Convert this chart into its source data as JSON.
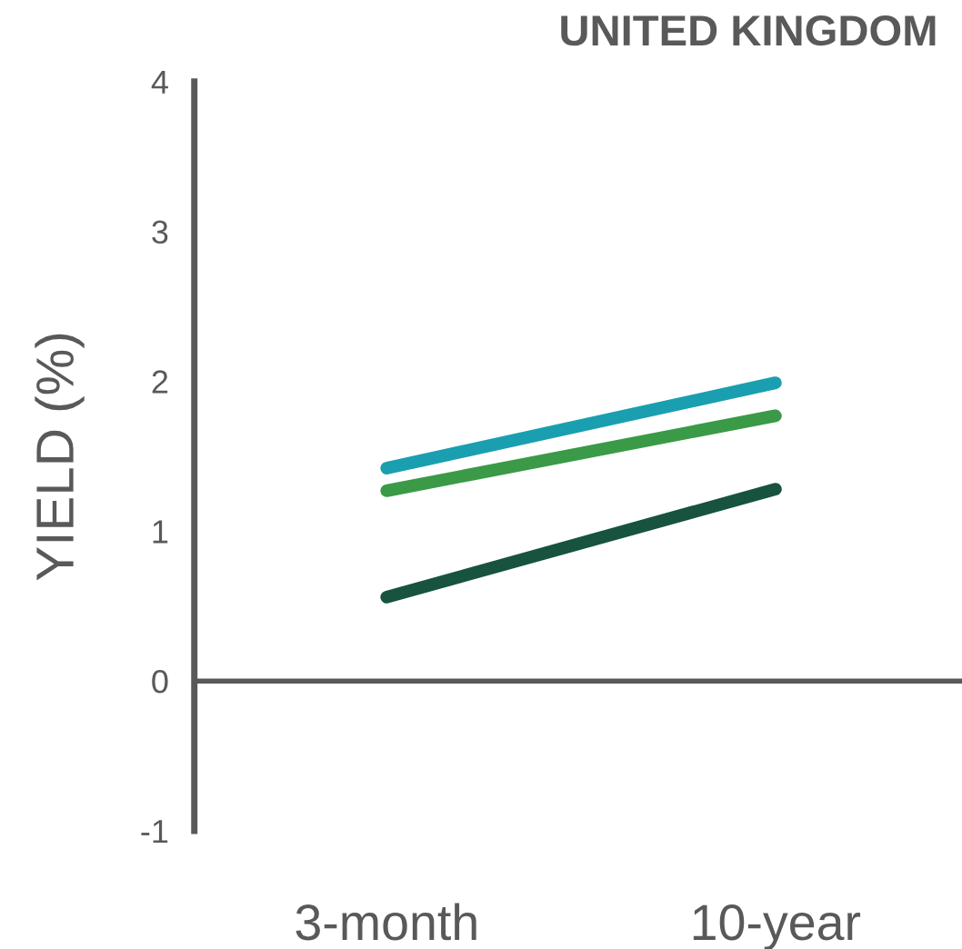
{
  "chart_data": {
    "type": "line",
    "title": "UNITED KINGDOM",
    "ylabel": "YIELD (%)",
    "categories": [
      "3-month",
      "10-year"
    ],
    "series": [
      {
        "color": "#1a9fb0",
        "values": [
          1.42,
          1.99
        ]
      },
      {
        "color": "#3a9a47",
        "values": [
          1.27,
          1.77
        ]
      },
      {
        "color": "#17533e",
        "values": [
          0.56,
          1.28
        ]
      }
    ],
    "ylim": [
      -1,
      4
    ],
    "yticks": [
      -1,
      0,
      1,
      2,
      3,
      4
    ],
    "legend": false,
    "marker": "none",
    "line_style": "solid"
  }
}
